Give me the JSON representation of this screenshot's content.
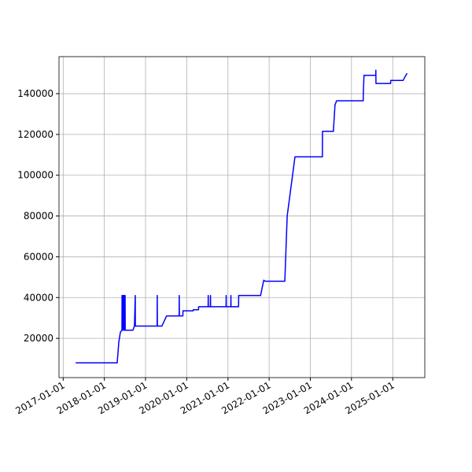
{
  "chart_data": {
    "type": "line",
    "color": "#0000ff",
    "grid": true,
    "x": [
      "2017-04-22",
      "2018-04-25",
      "2018-05-09",
      "2018-05-23",
      "2018-06-06",
      "2018-06-07",
      "2018-06-08",
      "2018-06-13",
      "2018-06-14",
      "2018-06-20",
      "2018-06-21",
      "2018-06-27",
      "2018-06-28",
      "2018-07-04",
      "2018-07-05",
      "2018-09-11",
      "2018-09-25",
      "2018-10-02",
      "2018-10-03",
      "2019-04-14",
      "2019-04-15",
      "2019-04-16",
      "2019-05-26",
      "2019-07-07",
      "2019-10-26",
      "2019-10-27",
      "2019-10-28",
      "2019-11-28",
      "2019-11-29",
      "2020-02-27",
      "2020-02-28",
      "2020-04-15",
      "2020-04-16",
      "2020-07-09",
      "2020-07-10",
      "2020-07-11",
      "2020-07-29",
      "2020-07-30",
      "2020-07-31",
      "2020-12-15",
      "2020-12-16",
      "2020-12-17",
      "2021-01-26",
      "2021-01-27",
      "2021-01-28",
      "2021-04-05",
      "2021-04-06",
      "2021-10-17",
      "2021-11-14",
      "2021-11-28",
      "2022-05-20",
      "2022-06-10",
      "2022-08-18",
      "2023-04-18",
      "2023-04-19",
      "2023-07-25",
      "2023-07-26",
      "2023-08-08",
      "2023-08-22",
      "2024-04-14",
      "2024-04-15",
      "2024-04-21",
      "2024-08-03",
      "2024-08-04",
      "2024-08-05",
      "2024-12-13",
      "2024-12-14",
      "2025-04-03",
      "2025-04-17",
      "2025-05-08"
    ],
    "values": [
      8000,
      8000,
      18000,
      23000,
      24000,
      41000,
      24000,
      41000,
      24000,
      41000,
      24000,
      41000,
      24000,
      41000,
      24000,
      24000,
      26000,
      41000,
      26000,
      26000,
      41000,
      26000,
      26000,
      31000,
      31000,
      41000,
      31000,
      31000,
      33500,
      33500,
      34000,
      34000,
      35500,
      35500,
      41000,
      35500,
      35500,
      41000,
      35500,
      35500,
      41000,
      35500,
      35500,
      41000,
      35500,
      35500,
      41000,
      41000,
      48500,
      48000,
      48000,
      80000,
      109000,
      109000,
      121500,
      121500,
      123000,
      134500,
      136500,
      136500,
      140500,
      149000,
      149000,
      151500,
      145000,
      145000,
      146500,
      146500,
      148000,
      150000
    ],
    "xlim": [
      "2016-11-25",
      "2025-10-12"
    ],
    "xticks": [
      "2017-01-01",
      "2018-01-01",
      "2019-01-01",
      "2020-01-01",
      "2021-01-01",
      "2022-01-01",
      "2023-01-01",
      "2024-01-01",
      "2025-01-01"
    ],
    "ylim": [
      750,
      158150
    ],
    "yticks": [
      20000,
      40000,
      60000,
      80000,
      100000,
      120000,
      140000
    ]
  }
}
